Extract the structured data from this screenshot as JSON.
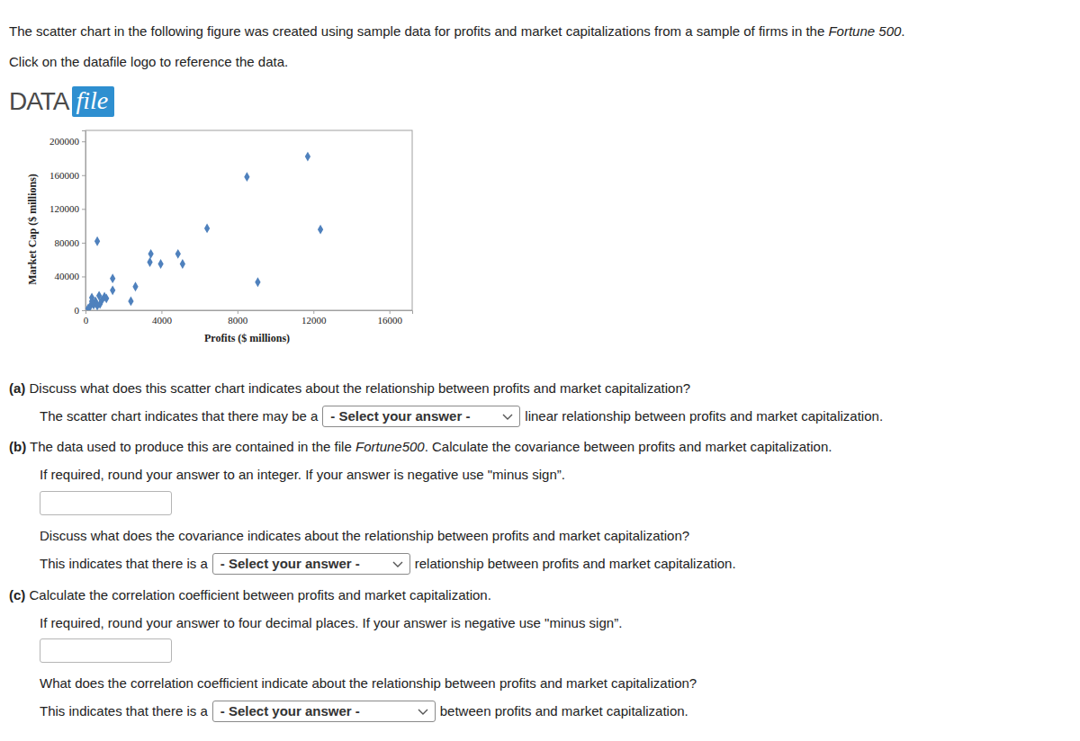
{
  "page": {
    "intro": {
      "before": "The scatter chart in the following figure was created using sample data for profits and market capitalizations from a sample of firms in the ",
      "emphasis": "Fortune 500",
      "after": "."
    },
    "instruction": "Click on the datafile logo to reference the data.",
    "logo": {
      "word": "DATA",
      "badge": "file"
    },
    "questions": [
      {
        "label": "(a)",
        "prompt": "Discuss what does this scatter chart indicates about the relationship between profits and market capitalization?",
        "items": [
          {
            "kind": "select",
            "before": "The scatter chart indicates that there may be a",
            "placeholder": "- Select your answer -",
            "after": "linear relationship between profits and market capitalization."
          }
        ]
      },
      {
        "label": "(b)",
        "prompt": {
          "before": "The data used to produce this are contained in the file ",
          "emphasis": "Fortune500",
          "after": ". Calculate the covariance between profits and market capitalization."
        },
        "items": [
          {
            "kind": "text",
            "text": "If required, round your answer to an integer. If your answer is negative use \"minus sign”."
          },
          {
            "kind": "input"
          },
          {
            "kind": "text",
            "text": "Discuss what does the covariance indicates about the relationship between profits and market capitalization?"
          },
          {
            "kind": "select",
            "before": "This indicates that there is a",
            "placeholder": "- Select your answer -",
            "after": "relationship between profits and market capitalization."
          }
        ]
      },
      {
        "label": "(c)",
        "prompt": "Calculate the correlation coefficient between profits and market capitalization.",
        "items": [
          {
            "kind": "text",
            "text": "If required, round your answer to four decimal places. If your answer is negative use \"minus sign”."
          },
          {
            "kind": "input"
          },
          {
            "kind": "text",
            "text": "What does the correlation coefficient indicate about the relationship between profits and market capitalization?"
          },
          {
            "kind": "select",
            "before": "This indicates that there is a",
            "placeholder": "- Select your answer -",
            "after": "between profits and market capitalization."
          }
        ]
      }
    ]
  },
  "chart_data": {
    "type": "scatter",
    "x_label": "Profits ($ millions)",
    "y_label": "Market Cap ($ millions)",
    "x": [
      11700,
      8500,
      6400,
      12370,
      620,
      3440,
      3390,
      3960,
      4870,
      5110,
      9070,
      1430,
      2630,
      1430,
      2390,
      334,
      525,
      716,
      860,
      1000,
      430,
      240,
      620,
      143,
      764,
      1100,
      334
    ],
    "values": [
      182000,
      158000,
      97000,
      95700,
      81700,
      66700,
      57000,
      54800,
      66700,
      54800,
      33300,
      37600,
      28000,
      23600,
      10750,
      15000,
      10750,
      17200,
      11800,
      16100,
      6450,
      4300,
      5400,
      2150,
      7500,
      14000,
      10750
    ],
    "color": "#4f81bd",
    "marker": "diamond",
    "grid": false,
    "xlim": [
      0,
      17200
    ],
    "ylim": [
      0,
      213000
    ],
    "xticks": [
      0,
      4000,
      8000,
      12000,
      16000
    ],
    "yticks": [
      0,
      40000,
      80000,
      120000,
      160000,
      200000
    ]
  }
}
